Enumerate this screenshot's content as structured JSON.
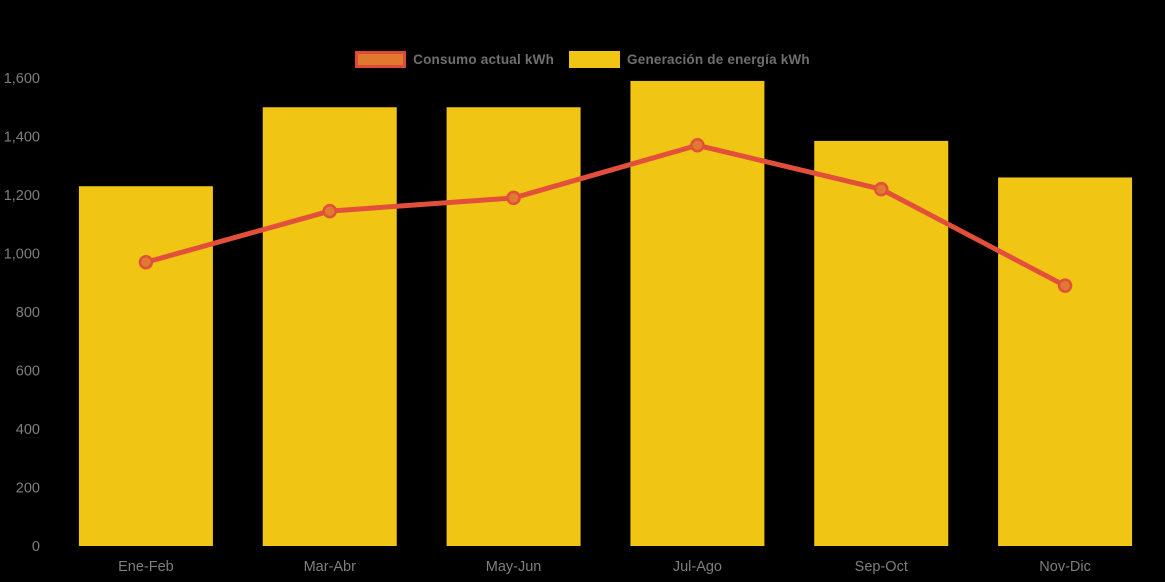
{
  "background_color": "#000000",
  "legend": [
    {
      "label": "Consumo actual kWh",
      "swatch_fill": "#E0782F",
      "swatch_border": "#DC4A38"
    },
    {
      "label": "Generación de energía kWh",
      "swatch_fill": "#F0C514",
      "swatch_border": "#F0C514"
    }
  ],
  "chart_data": {
    "type": "bar",
    "subtype": "bar-with-line-overlay",
    "title": "",
    "xlabel": "",
    "ylabel": "",
    "categories": [
      "Ene-Feb",
      "Mar-Abr",
      "May-Jun",
      "Jul-Ago",
      "Sep-Oct",
      "Nov-Dic"
    ],
    "series": [
      {
        "name": "Generación de energía kWh",
        "type": "bar",
        "color": "#F0C514",
        "values": [
          1230,
          1500,
          1500,
          1590,
          1385,
          1260
        ]
      },
      {
        "name": "Consumo actual kWh",
        "type": "line",
        "color": "#E2503C",
        "marker_fill": "#E07A30",
        "values": [
          970,
          1145,
          1190,
          1370,
          1220,
          890
        ]
      }
    ],
    "ylim": [
      0,
      1600
    ],
    "yticks": [
      0,
      200,
      400,
      600,
      800,
      1000,
      1200,
      1400,
      1600
    ],
    "ytick_labels": [
      "0",
      "200",
      "400",
      "600",
      "800",
      "1,000",
      "1,200",
      "1,400",
      "1,600"
    ],
    "grid": false,
    "axis_lines": false,
    "legend_position": "top-center",
    "axis_text_color": "#7E7E7E"
  }
}
